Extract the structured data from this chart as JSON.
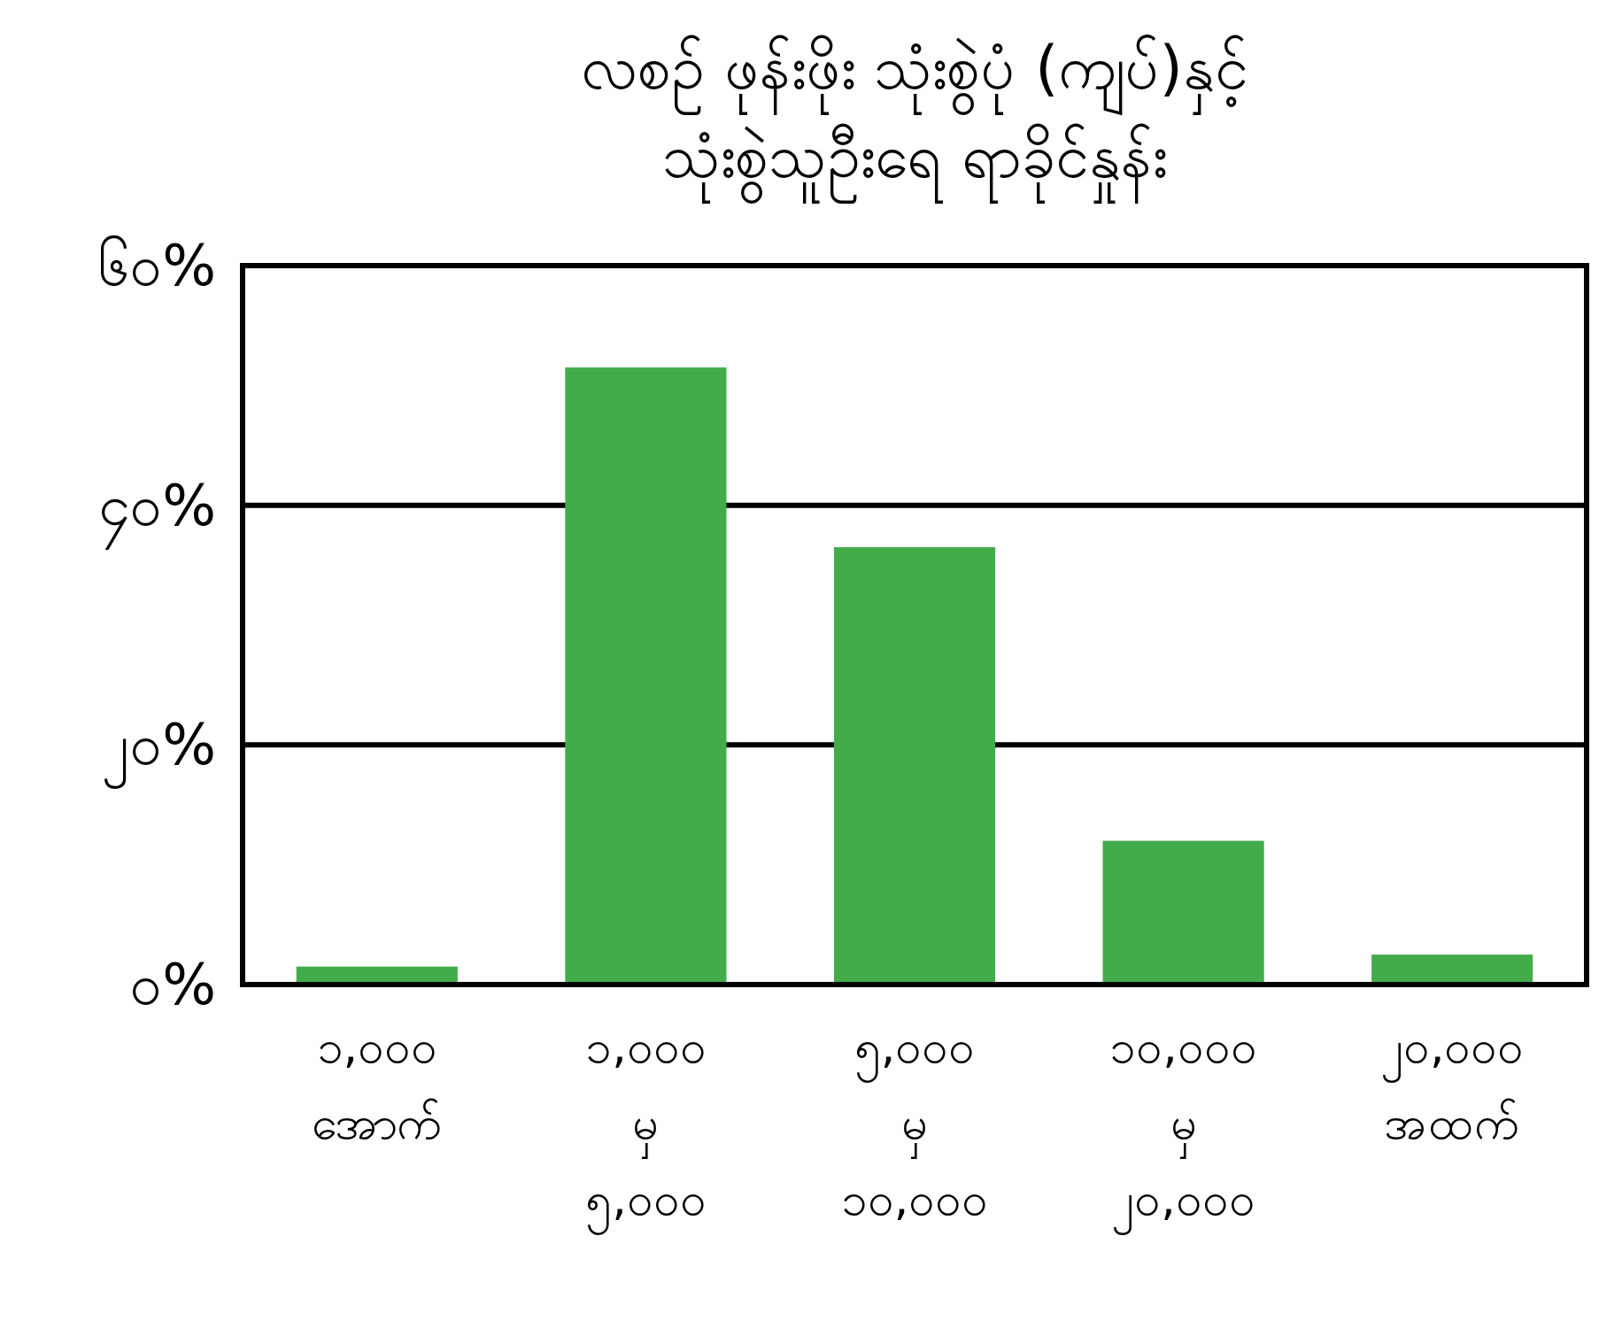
{
  "chart_data": {
    "type": "bar",
    "title": "လစဉ် ဖုန်းဖိုး သုံးစွဲပုံ (ကျပ်)နှင့်\nသုံးစွဲသူဦးရေ ရာခိုင်နှုန်း",
    "categories": [
      "၁,၀၀၀ အောက်",
      "၁,၀၀၀ မှ ၅,၀၀၀",
      "၅,၀၀၀ မှ ၁၀,၀၀၀",
      "၁၀,၀၀၀ မှ ၂၀,၀၀၀",
      "၂၀,၀၀၀ အထက်"
    ],
    "values": [
      1.5,
      51.5,
      36.5,
      12,
      2.5
    ],
    "color": "#43ac4a",
    "ylim": [
      0,
      60
    ],
    "yticks": [
      {
        "value": 0,
        "label": "၀%"
      },
      {
        "value": 20,
        "label": "၂၀%"
      },
      {
        "value": 40,
        "label": "၄၀%"
      },
      {
        "value": 60,
        "label": "၆၀%"
      }
    ],
    "grid": "y"
  }
}
